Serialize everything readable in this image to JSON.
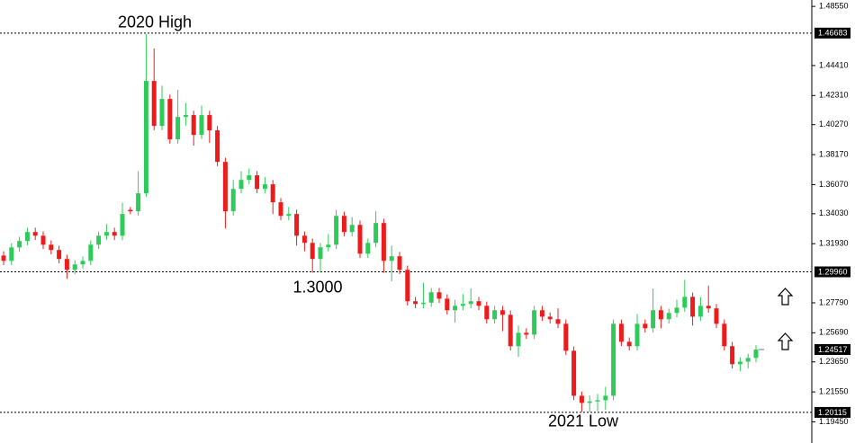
{
  "chart_data": {
    "type": "candlestick",
    "up_color": "#2fcb5a",
    "down_color": "#ec1c1c",
    "ylim": [
      1.186,
      1.49
    ],
    "yticks": [
      {
        "value": 1.4855,
        "label": "1.48550"
      },
      {
        "value": 1.4441,
        "label": "1.44410"
      },
      {
        "value": 1.4231,
        "label": "1.42310"
      },
      {
        "value": 1.4027,
        "label": "1.40270"
      },
      {
        "value": 1.3817,
        "label": "1.38170"
      },
      {
        "value": 1.3607,
        "label": "1.36070"
      },
      {
        "value": 1.3403,
        "label": "1.34030"
      },
      {
        "value": 1.3193,
        "label": "1.31930"
      },
      {
        "value": 1.2779,
        "label": "1.27790"
      },
      {
        "value": 1.2569,
        "label": "1.25690"
      },
      {
        "value": 1.2365,
        "label": "1.23650"
      },
      {
        "value": 1.2155,
        "label": "1.21550"
      },
      {
        "value": 1.1945,
        "label": "1.19450"
      }
    ],
    "levels": [
      {
        "value": 1.46683,
        "label": "1.46683"
      },
      {
        "value": 1.2996,
        "label": "1.29960"
      },
      1.20115
    ],
    "last_price": 1.24517,
    "annotations": [
      "2020 High",
      "1.3000",
      "2021 Low"
    ],
    "open": [
      1.311,
      1.3073,
      1.3167,
      1.3212,
      1.3275,
      1.3249,
      1.3186,
      1.3149,
      1.3086,
      1.301,
      1.3048,
      1.3073,
      1.3186,
      1.3249,
      1.3275,
      1.3249,
      1.343,
      1.342,
      1.3546,
      1.4333,
      1.4018,
      1.4207,
      1.3924,
      1.4081,
      1.4094,
      1.3955,
      1.4094,
      1.3987,
      1.3766,
      1.342,
      1.3577,
      1.364,
      1.3672,
      1.3577,
      1.3609,
      1.3483,
      1.3388,
      1.3401,
      1.3249,
      1.3199,
      1.3086,
      1.3168,
      1.3186,
      1.3388,
      1.3275,
      1.3325,
      1.3123,
      1.3199,
      1.3338,
      1.3073,
      1.3105,
      1.301,
      1.279,
      1.2771,
      1.278,
      1.2853,
      1.2808,
      1.2727,
      1.2758,
      1.2771,
      1.279,
      1.2758,
      1.2664,
      1.2727,
      1.2695,
      1.2475,
      1.2569,
      1.2556,
      1.2727,
      1.2682,
      1.2664,
      1.2632,
      1.2443,
      1.2128,
      1.2078,
      1.2088,
      1.2097,
      1.2128,
      1.2632,
      1.2506,
      1.2475,
      1.2632,
      1.2601,
      1.2727,
      1.2664,
      1.2708,
      1.2745,
      1.2821,
      1.2682,
      1.2758,
      1.274,
      1.2632,
      1.2475,
      1.2349,
      1.2367,
      1.2393
    ],
    "high": [
      1.314,
      1.3197,
      1.3242,
      1.3305,
      1.3305,
      1.3279,
      1.3216,
      1.3179,
      1.3116,
      1.3078,
      1.3103,
      1.3216,
      1.3279,
      1.333,
      1.3305,
      1.348,
      1.345,
      1.37,
      1.4661,
      1.456,
      1.43,
      1.4237,
      1.427,
      1.418,
      1.4124,
      1.416,
      1.4124,
      1.4017,
      1.3796,
      1.364,
      1.37,
      1.372,
      1.3702,
      1.366,
      1.3639,
      1.3513,
      1.345,
      1.3431,
      1.3279,
      1.3229,
      1.3198,
      1.326,
      1.343,
      1.3418,
      1.338,
      1.3355,
      1.3229,
      1.342,
      1.3368,
      1.318,
      1.3135,
      1.304,
      1.282,
      1.292,
      1.2883,
      1.2883,
      1.2838,
      1.28,
      1.284,
      1.288,
      1.282,
      1.2788,
      1.2757,
      1.2757,
      1.2725,
      1.262,
      1.26,
      1.2757,
      1.2757,
      1.2712,
      1.274,
      1.2662,
      1.2473,
      1.2158,
      1.213,
      1.214,
      1.219,
      1.2662,
      1.2662,
      1.2536,
      1.27,
      1.2662,
      1.288,
      1.2757,
      1.2738,
      1.28,
      1.294,
      1.2851,
      1.282,
      1.29,
      1.277,
      1.2662,
      1.2505,
      1.2397,
      1.2423,
      1.2482
    ],
    "low": [
      1.3043,
      1.3043,
      1.3137,
      1.3182,
      1.3219,
      1.3156,
      1.3119,
      1.3056,
      1.2947,
      1.298,
      1.3018,
      1.3043,
      1.3156,
      1.3219,
      1.3219,
      1.3219,
      1.34,
      1.339,
      1.352,
      1.3988,
      1.3988,
      1.3894,
      1.3894,
      1.402,
      1.388,
      1.3925,
      1.39,
      1.3736,
      1.33,
      1.339,
      1.3547,
      1.361,
      1.3547,
      1.3547,
      1.34,
      1.3358,
      1.3358,
      1.318,
      1.314,
      1.299,
      1.299,
      1.3138,
      1.3156,
      1.3245,
      1.3245,
      1.3093,
      1.3093,
      1.3169,
      1.299,
      1.293,
      1.298,
      1.276,
      1.2741,
      1.2741,
      1.275,
      1.2778,
      1.2697,
      1.264,
      1.2728,
      1.2741,
      1.2728,
      1.2634,
      1.2634,
      1.258,
      1.2445,
      1.24,
      1.2526,
      1.2526,
      1.2652,
      1.2634,
      1.2602,
      1.2413,
      1.2098,
      1.2015,
      1.2015,
      1.202,
      1.203,
      1.2098,
      1.2476,
      1.2445,
      1.2445,
      1.2571,
      1.2571,
      1.26,
      1.2634,
      1.2678,
      1.2715,
      1.262,
      1.2652,
      1.271,
      1.2602,
      1.2445,
      1.2319,
      1.23,
      1.232,
      1.2363
    ],
    "close": [
      1.3073,
      1.3167,
      1.3212,
      1.3275,
      1.3249,
      1.3186,
      1.3149,
      1.3086,
      1.301,
      1.3048,
      1.3073,
      1.3186,
      1.3249,
      1.3275,
      1.3249,
      1.3401,
      1.342,
      1.3546,
      1.4333,
      1.4018,
      1.4207,
      1.3924,
      1.4081,
      1.4094,
      1.3955,
      1.4094,
      1.3987,
      1.3766,
      1.342,
      1.3577,
      1.364,
      1.3672,
      1.3577,
      1.3609,
      1.3483,
      1.3388,
      1.3401,
      1.3249,
      1.3199,
      1.3086,
      1.3168,
      1.3186,
      1.3388,
      1.3275,
      1.3325,
      1.3123,
      1.3199,
      1.3338,
      1.3073,
      1.3105,
      1.301,
      1.279,
      1.2771,
      1.278,
      1.2853,
      1.2808,
      1.2727,
      1.2758,
      1.2771,
      1.279,
      1.2758,
      1.2664,
      1.2727,
      1.2695,
      1.2475,
      1.2569,
      1.2556,
      1.2727,
      1.2682,
      1.2664,
      1.2632,
      1.2443,
      1.2128,
      1.2078,
      1.2088,
      1.2097,
      1.2128,
      1.2632,
      1.2506,
      1.2475,
      1.2632,
      1.2601,
      1.2727,
      1.2664,
      1.2708,
      1.2745,
      1.2821,
      1.2682,
      1.2758,
      1.274,
      1.2632,
      1.2475,
      1.2349,
      1.2367,
      1.2393,
      1.2452
    ]
  }
}
